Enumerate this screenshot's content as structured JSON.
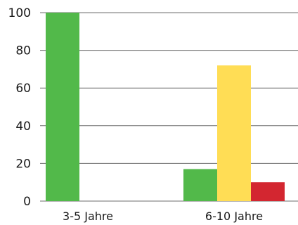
{
  "chart_data": {
    "type": "bar",
    "categories": [
      "3-5 Jahre",
      "6-10 Jahre"
    ],
    "series": [
      {
        "color": "#52b94a",
        "values": [
          100,
          17
        ]
      },
      {
        "color": "#ffdd55",
        "values": [
          0,
          72
        ]
      },
      {
        "color": "#d32630",
        "values": [
          0,
          10
        ]
      }
    ],
    "title": "",
    "xlabel": "",
    "ylabel": "",
    "ylim": [
      0,
      100
    ],
    "yticks": [
      0,
      20,
      40,
      60,
      80,
      100
    ],
    "grid": true,
    "legend": "none"
  }
}
